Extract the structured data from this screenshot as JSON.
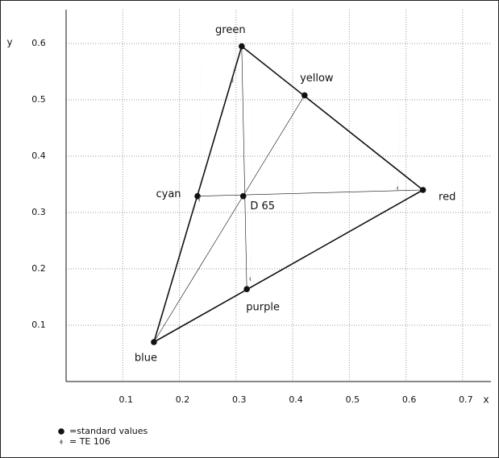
{
  "chart_data": {
    "type": "scatter",
    "x_label": "x",
    "y_label": "y",
    "xlim": [
      0,
      0.75
    ],
    "ylim": [
      0,
      0.66
    ],
    "xticks": [
      0.1,
      0.2,
      0.3,
      0.4,
      0.5,
      0.6,
      0.7
    ],
    "yticks": [
      0.1,
      0.2,
      0.3,
      0.4,
      0.5,
      0.6
    ],
    "grid": true,
    "series": [
      {
        "name": "=standard values",
        "color": "#111111",
        "marker": "circle",
        "labels": [
          "green",
          "yellow",
          "cyan",
          "red",
          "purple",
          "blue",
          "D 65"
        ],
        "x": [
          0.31,
          0.421,
          0.232,
          0.63,
          0.319,
          0.155,
          0.3127
        ],
        "values": [
          0.595,
          0.508,
          0.329,
          0.34,
          0.164,
          0.07,
          0.329
        ]
      },
      {
        "name": "= TE 106",
        "color": "#888888",
        "marker": "diamond",
        "x": [
          0.295,
          0.427,
          0.236,
          0.586,
          0.326,
          0.176
        ],
        "values": [
          0.534,
          0.49,
          0.323,
          0.343,
          0.182,
          0.15
        ]
      }
    ]
  }
}
